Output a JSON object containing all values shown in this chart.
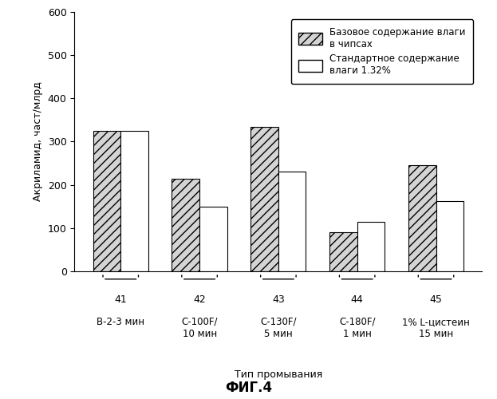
{
  "groups": [
    {
      "id": "41",
      "label1": "41",
      "label2": "В-2-3 мин",
      "hatched": 325,
      "white": 325
    },
    {
      "id": "42",
      "label1": "42",
      "label2": "С-100F/\n10 мин",
      "hatched": 215,
      "white": 150
    },
    {
      "id": "43",
      "label1": "43",
      "label2": "С-130F/\n5 мин",
      "hatched": 335,
      "white": 230
    },
    {
      "id": "44",
      "label1": "44",
      "label2": "С-180F/\n1 мин",
      "hatched": 90,
      "white": 115
    },
    {
      "id": "45",
      "label1": "45",
      "label2": "1% L-цистеин\n15 мин",
      "hatched": 245,
      "white": 162
    }
  ],
  "ylabel": "Акриламид, част/млрд",
  "xlabel": "Тип промывания",
  "ylim": [
    0,
    600
  ],
  "yticks": [
    0,
    100,
    200,
    300,
    400,
    500,
    600
  ],
  "title": "ФИГ.4",
  "legend_hatched": "Базовое содержание влаги\nв чипсах",
  "legend_white": "Стандартное содержание\nвлаги 1.32%",
  "bar_width": 0.35,
  "hatch_pattern": "///",
  "hatched_color": "#d4d4d4",
  "white_color": "#ffffff",
  "edge_color": "#000000",
  "background_color": "#ffffff"
}
